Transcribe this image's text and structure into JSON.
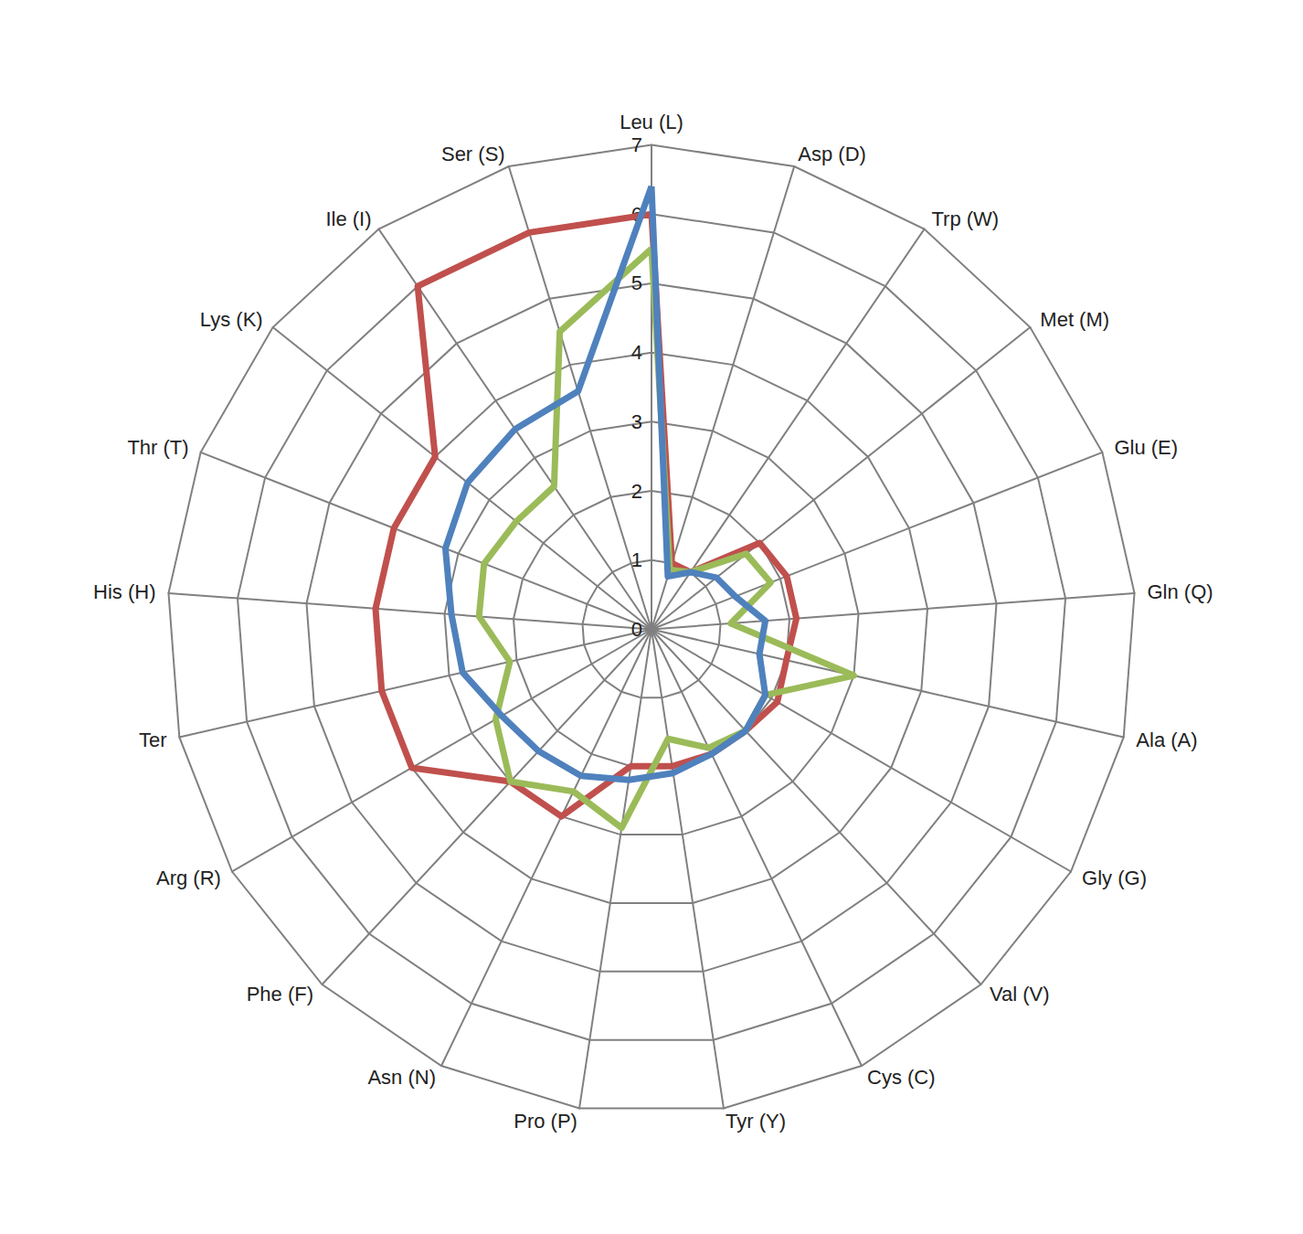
{
  "chart_data": {
    "type": "radar",
    "categories": [
      "Leu (L)",
      "Ser (S)",
      "Ile (I)",
      "Lys (K)",
      "Thr (T)",
      "His (H)",
      "Ter",
      "Arg (R)",
      "Phe (F)",
      "Asn (N)",
      "Pro (P)",
      "Tyr (Y)",
      "Cys (C)",
      "Val (V)",
      "Gly (G)",
      "Ala (A)",
      "Gln (Q)",
      "Glu (E)",
      "Met (M)",
      "Trp (W)",
      "Asp (D)"
    ],
    "series": [
      {
        "color": "#c0504d",
        "values": [
          6.0,
          6.0,
          6.0,
          4.0,
          4.0,
          4.0,
          4.0,
          4.0,
          3.0,
          3.0,
          2.0,
          2.0,
          2.0,
          2.0,
          2.1,
          2.0,
          2.1,
          2.1,
          2.0,
          1.0,
          1.0
        ]
      },
      {
        "color": "#9bbb59",
        "values": [
          5.5,
          4.5,
          2.5,
          2.5,
          2.6,
          2.5,
          2.1,
          2.6,
          3.0,
          2.6,
          2.9,
          1.6,
          1.9,
          2.0,
          1.9,
          3.0,
          1.15,
          1.85,
          1.75,
          1.0,
          0.9
        ]
      },
      {
        "color": "#4f81bd",
        "values": [
          6.4,
          3.6,
          3.5,
          3.4,
          3.2,
          2.9,
          2.8,
          2.5,
          2.4,
          2.35,
          2.2,
          2.1,
          2.0,
          2.0,
          1.9,
          1.6,
          1.65,
          1.3,
          1.2,
          1.0,
          0.8
        ]
      }
    ],
    "ylim": [
      0,
      7
    ],
    "yticks": [
      0,
      1,
      2,
      3,
      4,
      5,
      6,
      7
    ],
    "grid": true
  }
}
